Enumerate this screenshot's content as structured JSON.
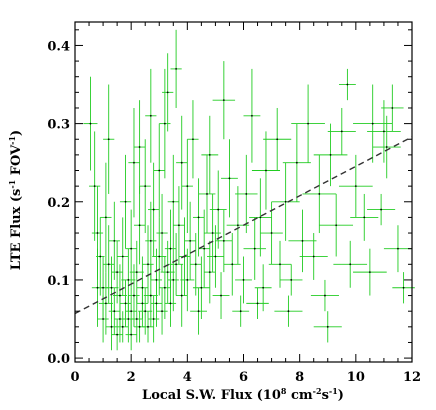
{
  "chart_data": {
    "type": "scatter",
    "xlabel_main": "Local S.W. Flux (10",
    "xlabel_exp": "8",
    "xlabel_unit": " cm",
    "xlabel_unit_exp": "-2",
    "xlabel_unit2": "s",
    "xlabel_unit2_exp": "-1",
    "xlabel_close": ")",
    "ylabel_main": "LTE Flux (s",
    "ylabel_exp": "-1",
    "ylabel_fov": " FOV",
    "ylabel_fov_exp": "-1",
    "ylabel_close": ")",
    "xlim": [
      0,
      12
    ],
    "ylim": [
      -0.005,
      0.43
    ],
    "xticks": [
      "0",
      "2",
      "4",
      "6",
      "8",
      "10",
      "12"
    ],
    "yticks": [
      "0.0",
      "0.1",
      "0.2",
      "0.3",
      "0.4"
    ],
    "grid": false,
    "fit_line": {
      "x": [
        0,
        12
      ],
      "y": [
        0.057,
        0.283
      ]
    },
    "colors": {
      "errorbar": "#22cc22",
      "point": "#000000",
      "fit": "#333333"
    },
    "series": [
      {
        "points": [
          [
            0.55,
            0.3,
            0.25,
            0.06
          ],
          [
            0.7,
            0.22,
            0.2,
            0.07
          ],
          [
            0.8,
            0.16,
            0.2,
            0.06
          ],
          [
            0.9,
            0.13,
            0.15,
            0.05
          ],
          [
            1.0,
            0.09,
            0.2,
            0.04
          ],
          [
            1.0,
            0.05,
            0.2,
            0.03
          ],
          [
            1.1,
            0.07,
            0.25,
            0.04
          ],
          [
            1.2,
            0.12,
            0.2,
            0.05
          ],
          [
            1.2,
            0.28,
            0.2,
            0.07
          ],
          [
            1.3,
            0.04,
            0.2,
            0.03
          ],
          [
            1.3,
            0.09,
            0.25,
            0.04
          ],
          [
            1.4,
            0.06,
            0.2,
            0.03
          ],
          [
            1.4,
            0.15,
            0.2,
            0.05
          ],
          [
            1.5,
            0.03,
            0.2,
            0.02
          ],
          [
            1.5,
            0.11,
            0.2,
            0.04
          ],
          [
            1.6,
            0.05,
            0.2,
            0.03
          ],
          [
            1.6,
            0.08,
            0.25,
            0.04
          ],
          [
            1.7,
            0.13,
            0.2,
            0.05
          ],
          [
            1.7,
            0.04,
            0.2,
            0.02
          ],
          [
            1.8,
            0.07,
            0.2,
            0.03
          ],
          [
            1.8,
            0.2,
            0.2,
            0.06
          ],
          [
            1.9,
            0.05,
            0.2,
            0.03
          ],
          [
            1.9,
            0.1,
            0.25,
            0.04
          ],
          [
            2.0,
            0.03,
            0.2,
            0.02
          ],
          [
            2.0,
            0.06,
            0.2,
            0.03
          ],
          [
            2.0,
            0.14,
            0.2,
            0.05
          ],
          [
            2.1,
            0.08,
            0.2,
            0.04
          ],
          [
            2.1,
            0.25,
            0.2,
            0.07
          ],
          [
            2.2,
            0.05,
            0.2,
            0.03
          ],
          [
            2.2,
            0.11,
            0.25,
            0.04
          ],
          [
            2.3,
            0.04,
            0.2,
            0.02
          ],
          [
            2.3,
            0.17,
            0.2,
            0.05
          ],
          [
            2.4,
            0.07,
            0.2,
            0.03
          ],
          [
            2.4,
            0.09,
            0.2,
            0.04
          ],
          [
            2.5,
            0.06,
            0.25,
            0.03
          ],
          [
            2.5,
            0.22,
            0.2,
            0.06
          ],
          [
            2.6,
            0.04,
            0.2,
            0.02
          ],
          [
            2.6,
            0.12,
            0.2,
            0.05
          ],
          [
            2.7,
            0.08,
            0.25,
            0.04
          ],
          [
            2.7,
            0.15,
            0.2,
            0.05
          ],
          [
            2.8,
            0.05,
            0.2,
            0.03
          ],
          [
            2.8,
            0.19,
            0.2,
            0.06
          ],
          [
            2.9,
            0.1,
            0.2,
            0.04
          ],
          [
            2.9,
            0.07,
            0.2,
            0.03
          ],
          [
            3.0,
            0.13,
            0.25,
            0.05
          ],
          [
            3.0,
            0.24,
            0.2,
            0.06
          ],
          [
            3.1,
            0.06,
            0.2,
            0.03
          ],
          [
            3.1,
            0.16,
            0.2,
            0.05
          ],
          [
            3.2,
            0.09,
            0.2,
            0.04
          ],
          [
            3.2,
            0.3,
            0.2,
            0.07
          ],
          [
            3.3,
            0.11,
            0.25,
            0.04
          ],
          [
            3.4,
            0.14,
            0.2,
            0.05
          ],
          [
            3.4,
            0.07,
            0.2,
            0.03
          ],
          [
            3.5,
            0.2,
            0.2,
            0.06
          ],
          [
            3.5,
            0.1,
            0.2,
            0.04
          ],
          [
            3.6,
            0.37,
            0.2,
            0.05
          ],
          [
            3.6,
            0.12,
            0.25,
            0.04
          ],
          [
            3.7,
            0.17,
            0.2,
            0.05
          ],
          [
            3.8,
            0.08,
            0.2,
            0.04
          ],
          [
            3.9,
            0.13,
            0.2,
            0.05
          ],
          [
            4.0,
            0.22,
            0.2,
            0.06
          ],
          [
            4.0,
            0.1,
            0.25,
            0.04
          ],
          [
            4.1,
            0.15,
            0.2,
            0.05
          ],
          [
            4.2,
            0.28,
            0.2,
            0.05
          ],
          [
            4.3,
            0.12,
            0.2,
            0.04
          ],
          [
            4.4,
            0.18,
            0.2,
            0.05
          ],
          [
            4.5,
            0.09,
            0.3,
            0.04
          ],
          [
            4.6,
            0.14,
            0.2,
            0.05
          ],
          [
            4.7,
            0.21,
            0.3,
            0.05
          ],
          [
            4.8,
            0.11,
            0.2,
            0.04
          ],
          [
            4.9,
            0.16,
            0.3,
            0.05
          ],
          [
            5.0,
            0.13,
            0.3,
            0.04
          ],
          [
            5.1,
            0.19,
            0.3,
            0.05
          ],
          [
            5.2,
            0.08,
            0.3,
            0.03
          ],
          [
            5.3,
            0.15,
            0.3,
            0.04
          ],
          [
            5.5,
            0.23,
            0.3,
            0.05
          ],
          [
            5.6,
            0.12,
            0.3,
            0.04
          ],
          [
            5.8,
            0.17,
            0.4,
            0.05
          ],
          [
            5.9,
            0.06,
            0.3,
            0.02
          ],
          [
            6.0,
            0.1,
            0.3,
            0.03
          ],
          [
            6.1,
            0.21,
            0.4,
            0.05
          ],
          [
            6.3,
            0.31,
            0.3,
            0.06
          ],
          [
            6.4,
            0.14,
            0.4,
            0.04
          ],
          [
            6.6,
            0.18,
            0.4,
            0.05
          ],
          [
            6.7,
            0.09,
            0.3,
            0.03
          ],
          [
            6.8,
            0.24,
            0.5,
            0.05
          ],
          [
            7.0,
            0.16,
            0.4,
            0.04
          ],
          [
            7.2,
            0.28,
            0.5,
            0.04
          ],
          [
            7.3,
            0.12,
            0.4,
            0.03
          ],
          [
            7.5,
            0.2,
            0.5,
            0.05
          ],
          [
            7.7,
            0.1,
            0.4,
            0.02
          ],
          [
            7.9,
            0.25,
            0.5,
            0.05
          ],
          [
            8.1,
            0.15,
            0.5,
            0.04
          ],
          [
            8.3,
            0.3,
            0.6,
            0.05
          ],
          [
            8.5,
            0.13,
            0.5,
            0.03
          ],
          [
            8.7,
            0.21,
            0.6,
            0.05
          ],
          [
            8.9,
            0.08,
            0.5,
            0.02
          ],
          [
            9.1,
            0.26,
            0.6,
            0.04
          ],
          [
            9.3,
            0.17,
            0.6,
            0.04
          ],
          [
            9.5,
            0.29,
            0.5,
            0.03
          ],
          [
            9.7,
            0.35,
            0.3,
            0.02
          ],
          [
            9.8,
            0.12,
            0.6,
            0.03
          ],
          [
            10.0,
            0.22,
            0.6,
            0.04
          ],
          [
            10.3,
            0.18,
            0.5,
            0.03
          ],
          [
            10.6,
            0.3,
            0.7,
            0.05
          ],
          [
            10.9,
            0.19,
            0.5,
            0.02
          ],
          [
            11.1,
            0.27,
            0.5,
            0.04
          ],
          [
            11.3,
            0.32,
            0.4,
            0.03
          ],
          [
            11.5,
            0.14,
            0.5,
            0.03
          ],
          [
            11.7,
            0.09,
            0.4,
            0.02
          ],
          [
            11.0,
            0.29,
            0.6,
            0.04
          ],
          [
            6.5,
            0.07,
            0.4,
            0.02
          ],
          [
            5.3,
            0.33,
            0.4,
            0.05
          ],
          [
            4.8,
            0.26,
            0.3,
            0.05
          ],
          [
            3.3,
            0.34,
            0.2,
            0.05
          ],
          [
            2.7,
            0.31,
            0.2,
            0.06
          ],
          [
            0.8,
            0.09,
            0.2,
            0.05
          ],
          [
            1.1,
            0.18,
            0.2,
            0.07
          ],
          [
            2.3,
            0.27,
            0.2,
            0.06
          ],
          [
            3.8,
            0.25,
            0.2,
            0.06
          ],
          [
            4.4,
            0.06,
            0.3,
            0.03
          ],
          [
            7.6,
            0.06,
            0.5,
            0.02
          ],
          [
            9.0,
            0.04,
            0.5,
            0.02
          ],
          [
            10.5,
            0.11,
            0.6,
            0.03
          ]
        ]
      }
    ]
  }
}
